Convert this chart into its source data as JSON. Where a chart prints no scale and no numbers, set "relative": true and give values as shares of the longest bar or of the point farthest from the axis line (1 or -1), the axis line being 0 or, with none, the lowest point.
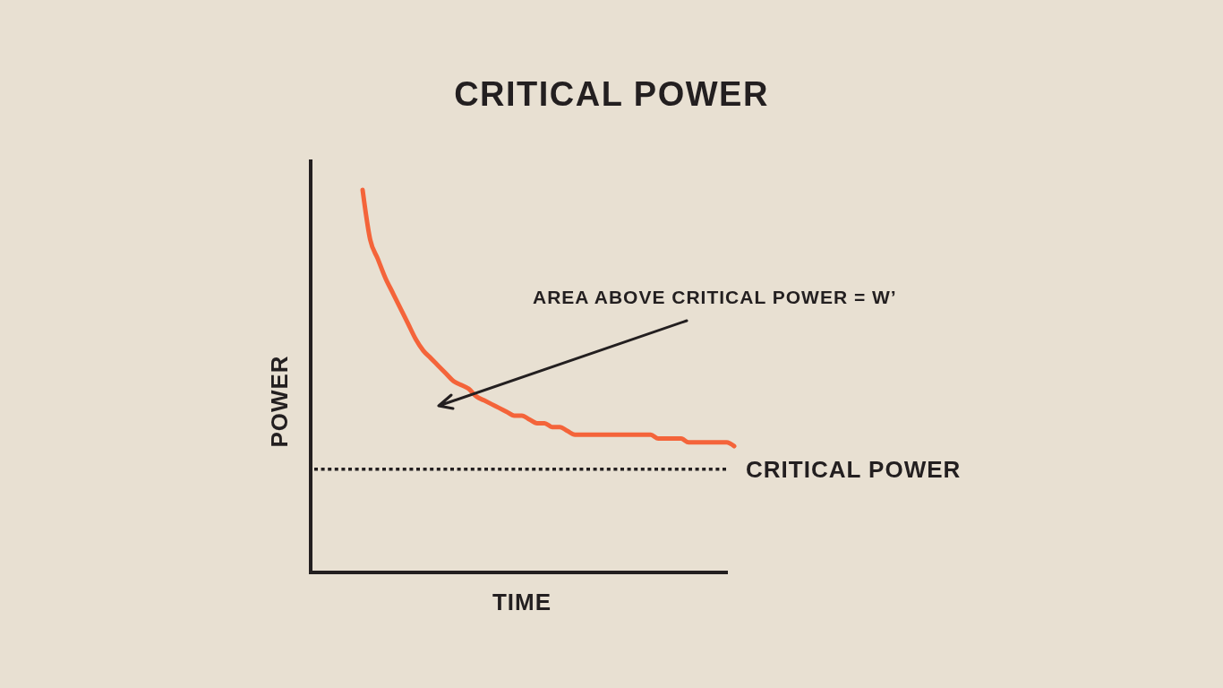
{
  "chart_data": {
    "type": "line",
    "title": "CRITICAL POWER",
    "xlabel": "TIME",
    "ylabel": "POWER",
    "categories": [
      null,
      null,
      null,
      null,
      null,
      null,
      null,
      null,
      null,
      null,
      null,
      null,
      null,
      null,
      null,
      null,
      null,
      null,
      null,
      null,
      null,
      null,
      null,
      null,
      null,
      null,
      null,
      null,
      null,
      null,
      null,
      null,
      null,
      null,
      null,
      null,
      null,
      null,
      null,
      null,
      null,
      null,
      null,
      null,
      null,
      null,
      null,
      null,
      null,
      null
    ],
    "series": [
      {
        "color": "#f4643a",
        "values": [
          1.0,
          0.87,
          0.82,
          0.77,
          0.73,
          0.69,
          0.65,
          0.61,
          0.58,
          0.56,
          0.54,
          0.52,
          0.5,
          0.49,
          0.48,
          0.46,
          0.45,
          0.44,
          0.43,
          0.42,
          0.41,
          0.41,
          0.4,
          0.39,
          0.39,
          0.38,
          0.38,
          0.37,
          0.36,
          0.36,
          0.36,
          0.36,
          0.36,
          0.36,
          0.36,
          0.36,
          0.36,
          0.36,
          0.36,
          0.35,
          0.35,
          0.35,
          0.35,
          0.34,
          0.34,
          0.34,
          0.34,
          0.34,
          0.34,
          0.33
        ]
      }
    ],
    "relative": true,
    "ref_lines": [
      {
        "axis": "y",
        "value": 0.27,
        "label": "CRITICAL POWER",
        "color": "#231f20",
        "line_style": "dotted"
      }
    ],
    "annotations": [
      "AREA ABOVE CRITICAL POWER = W’"
    ]
  }
}
